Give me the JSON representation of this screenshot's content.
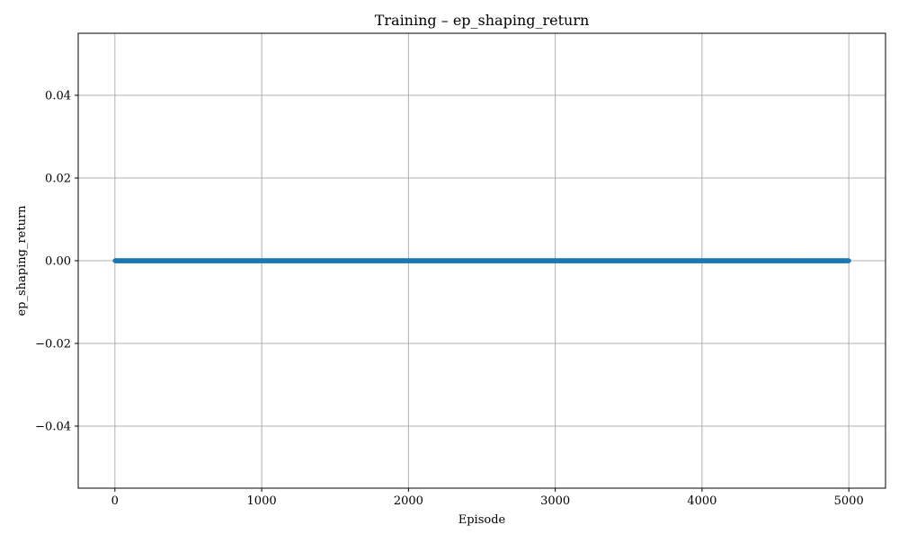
{
  "chart_data": {
    "type": "scatter",
    "title": "Training – ep_shaping_return",
    "xlabel": "Episode",
    "ylabel": "ep_shaping_return",
    "xlim": [
      -250,
      5250
    ],
    "ylim": [
      -0.055,
      0.055
    ],
    "x_ticks": [
      0,
      1000,
      2000,
      3000,
      4000,
      5000
    ],
    "x_tick_labels": [
      "0",
      "1000",
      "2000",
      "3000",
      "4000",
      "5000"
    ],
    "y_ticks": [
      -0.04,
      -0.02,
      0.0,
      0.02,
      0.04
    ],
    "y_tick_labels": [
      "−0.04",
      "−0.02",
      "0.00",
      "0.02",
      "0.04"
    ],
    "grid": true,
    "series": [
      {
        "color": "#1f77b4",
        "x_start": 1,
        "x_end": 5000,
        "x_step": 1,
        "y_constant": 0.0
      }
    ]
  }
}
